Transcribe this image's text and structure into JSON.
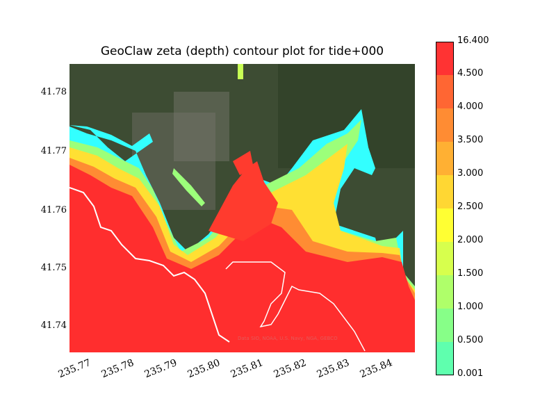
{
  "title": "GeoClaw zeta (depth) contour plot for tide+000",
  "map": {
    "y_ticks": [
      "41.78",
      "41.77",
      "41.76",
      "41.75",
      "41.74"
    ],
    "x_ticks": [
      "235.77",
      "235.78",
      "235.79",
      "235.80",
      "235.81",
      "235.82",
      "235.83",
      "235.84"
    ],
    "credit": "Data SIO, NOAA, U.S. Navy, NGA, GEBCO",
    "colors": {
      "land": "#3a4a31",
      "coast": "#ffffff"
    }
  },
  "colorbar": {
    "labels": [
      "16.400",
      "4.500",
      "4.000",
      "3.500",
      "3.000",
      "2.500",
      "2.000",
      "1.500",
      "1.000",
      "0.500",
      "0.001"
    ],
    "colors_top_to_bottom": [
      "#ff3333",
      "#ff6633",
      "#ff8c33",
      "#ffb033",
      "#ffd733",
      "#ffff33",
      "#d7ff4d",
      "#afff6a",
      "#87ff88",
      "#5fffae",
      "#33ffff"
    ]
  }
}
